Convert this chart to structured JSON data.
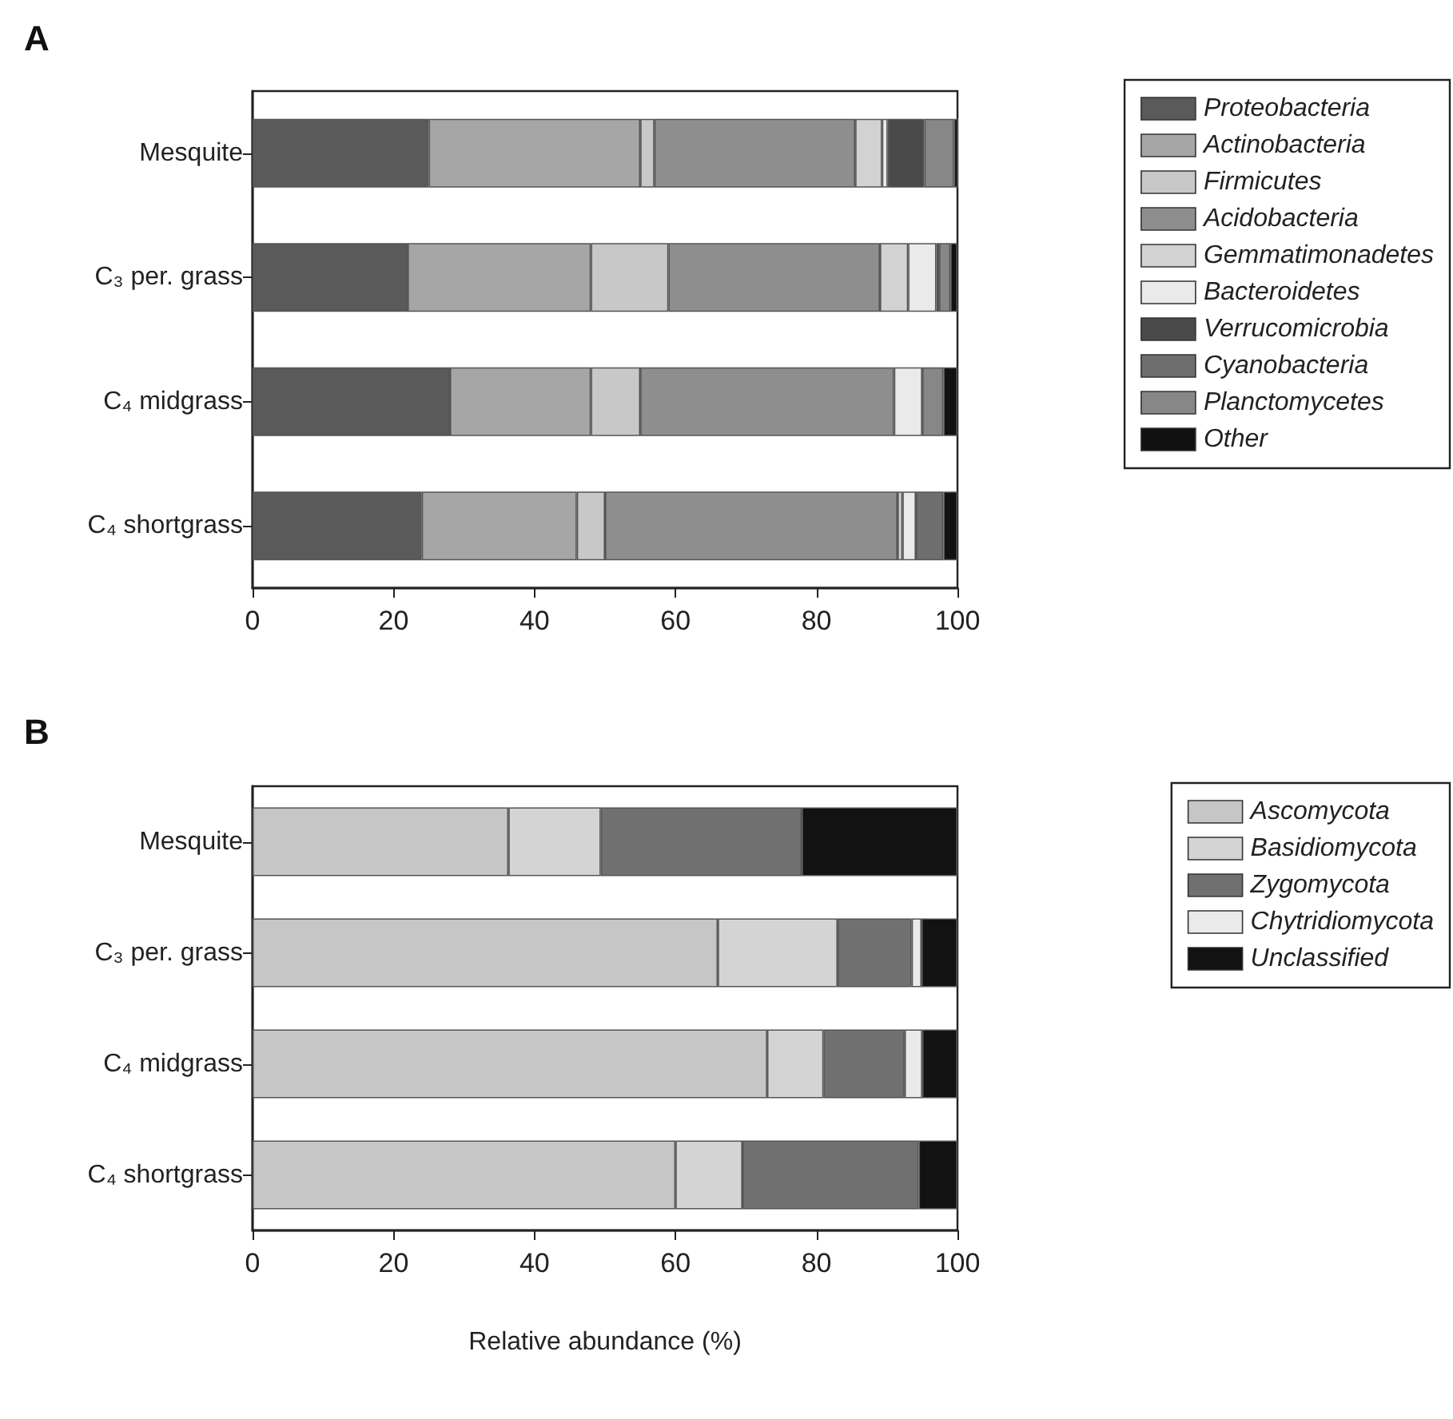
{
  "chart_data": [
    {
      "type": "bar",
      "title": "A",
      "orientation": "horizontal",
      "stacked": true,
      "categories": [
        "Mesquite",
        "C₃ per. grass",
        "C₄ midgrass",
        "C₄ shortgrass"
      ],
      "series": [
        {
          "name": "Proteobacteria",
          "color": "#5a5a5a",
          "values": [
            25,
            22,
            28,
            24
          ]
        },
        {
          "name": "Actinobacteria",
          "color": "#a6a6a6",
          "values": [
            30,
            26,
            20,
            22
          ]
        },
        {
          "name": "Firmicutes",
          "color": "#c8c8c8",
          "values": [
            2,
            11,
            7,
            4
          ]
        },
        {
          "name": "Acidobacteria",
          "color": "#8e8e8e",
          "values": [
            28.5,
            30,
            36,
            41.5
          ]
        },
        {
          "name": "Gemmatimonadetes",
          "color": "#d2d2d2",
          "values": [
            3.8,
            4,
            0,
            0.7
          ]
        },
        {
          "name": "Bacteroidetes",
          "color": "#eaeaea",
          "values": [
            0.8,
            4,
            4,
            1.9
          ]
        },
        {
          "name": "Verrucomicrobia",
          "color": "#4a4a4a",
          "values": [
            5.2,
            0.4,
            0,
            0
          ]
        },
        {
          "name": "Cyanobacteria",
          "color": "#6e6e6e",
          "values": [
            0,
            0,
            0,
            3.9
          ]
        },
        {
          "name": "Planctomycetes",
          "color": "#878787",
          "values": [
            4.2,
            1.6,
            3,
            0
          ]
        },
        {
          "name": "Other",
          "color": "#111111",
          "values": [
            0.6,
            1,
            2,
            2
          ]
        }
      ],
      "xlim": [
        0,
        100
      ],
      "xticks": [
        0,
        20,
        40,
        60,
        80,
        100
      ],
      "grid": false,
      "legend": "right"
    },
    {
      "type": "bar",
      "title": "B",
      "orientation": "horizontal",
      "stacked": true,
      "xlabel": "Relative abundance (%)",
      "categories": [
        "Mesquite",
        "C₃ per. grass",
        "C₄ midgrass",
        "C₄ shortgrass"
      ],
      "series": [
        {
          "name": "Ascomycota",
          "color": "#c6c6c6",
          "values": [
            36.3,
            66,
            73,
            60
          ]
        },
        {
          "name": "Basidiomycota",
          "color": "#d4d4d4",
          "values": [
            13.1,
            17,
            8,
            9.5
          ]
        },
        {
          "name": "Zygomycota",
          "color": "#707070",
          "values": [
            28.5,
            10.5,
            11.5,
            25
          ]
        },
        {
          "name": "Chytridiomycota",
          "color": "#eaeaea",
          "values": [
            0,
            1.4,
            2.5,
            0
          ]
        },
        {
          "name": "Unclassified",
          "color": "#121212",
          "values": [
            22.1,
            5.1,
            5,
            5.5
          ]
        }
      ],
      "xlim": [
        0,
        100
      ],
      "xticks": [
        0,
        20,
        40,
        60,
        80,
        100
      ],
      "grid": false,
      "legend": "right"
    }
  ]
}
